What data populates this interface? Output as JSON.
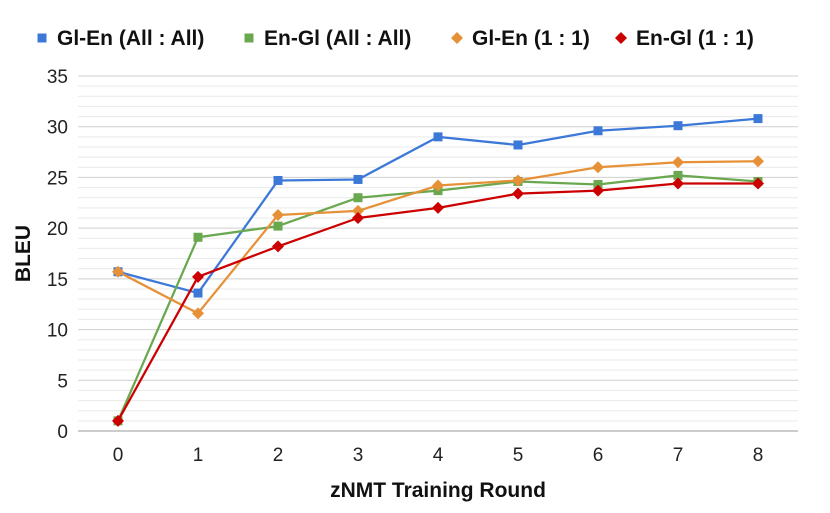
{
  "chart_data": {
    "type": "line",
    "title": "",
    "xlabel": "zNMT Training Round",
    "ylabel": "BLEU",
    "categories": [
      "0",
      "1",
      "2",
      "3",
      "4",
      "5",
      "6",
      "7",
      "8"
    ],
    "ylim": [
      0,
      35
    ],
    "yticks": [
      "0",
      "5",
      "10",
      "15",
      "20",
      "25",
      "30",
      "35"
    ],
    "grid": "horizontal",
    "legend_position": "top",
    "series": [
      {
        "name": "Gl-En (All : All)",
        "color": "#3c78d8",
        "marker": "square",
        "values": [
          15.7,
          13.6,
          24.7,
          24.8,
          29.0,
          28.2,
          29.6,
          30.1,
          30.8
        ]
      },
      {
        "name": "En-Gl (All : All)",
        "color": "#6aa84f",
        "marker": "square",
        "values": [
          1.0,
          19.1,
          20.2,
          23.0,
          23.7,
          24.6,
          24.3,
          25.2,
          24.6
        ]
      },
      {
        "name": "Gl-En (1 : 1)",
        "color": "#e69138",
        "marker": "diamond",
        "values": [
          15.7,
          11.6,
          21.3,
          21.7,
          24.2,
          24.7,
          26.0,
          26.5,
          26.6
        ]
      },
      {
        "name": "En-Gl (1 : 1)",
        "color": "#cc0000",
        "marker": "diamond",
        "values": [
          1.0,
          15.2,
          18.2,
          21.0,
          22.0,
          23.4,
          23.7,
          24.4,
          24.4
        ]
      }
    ]
  }
}
